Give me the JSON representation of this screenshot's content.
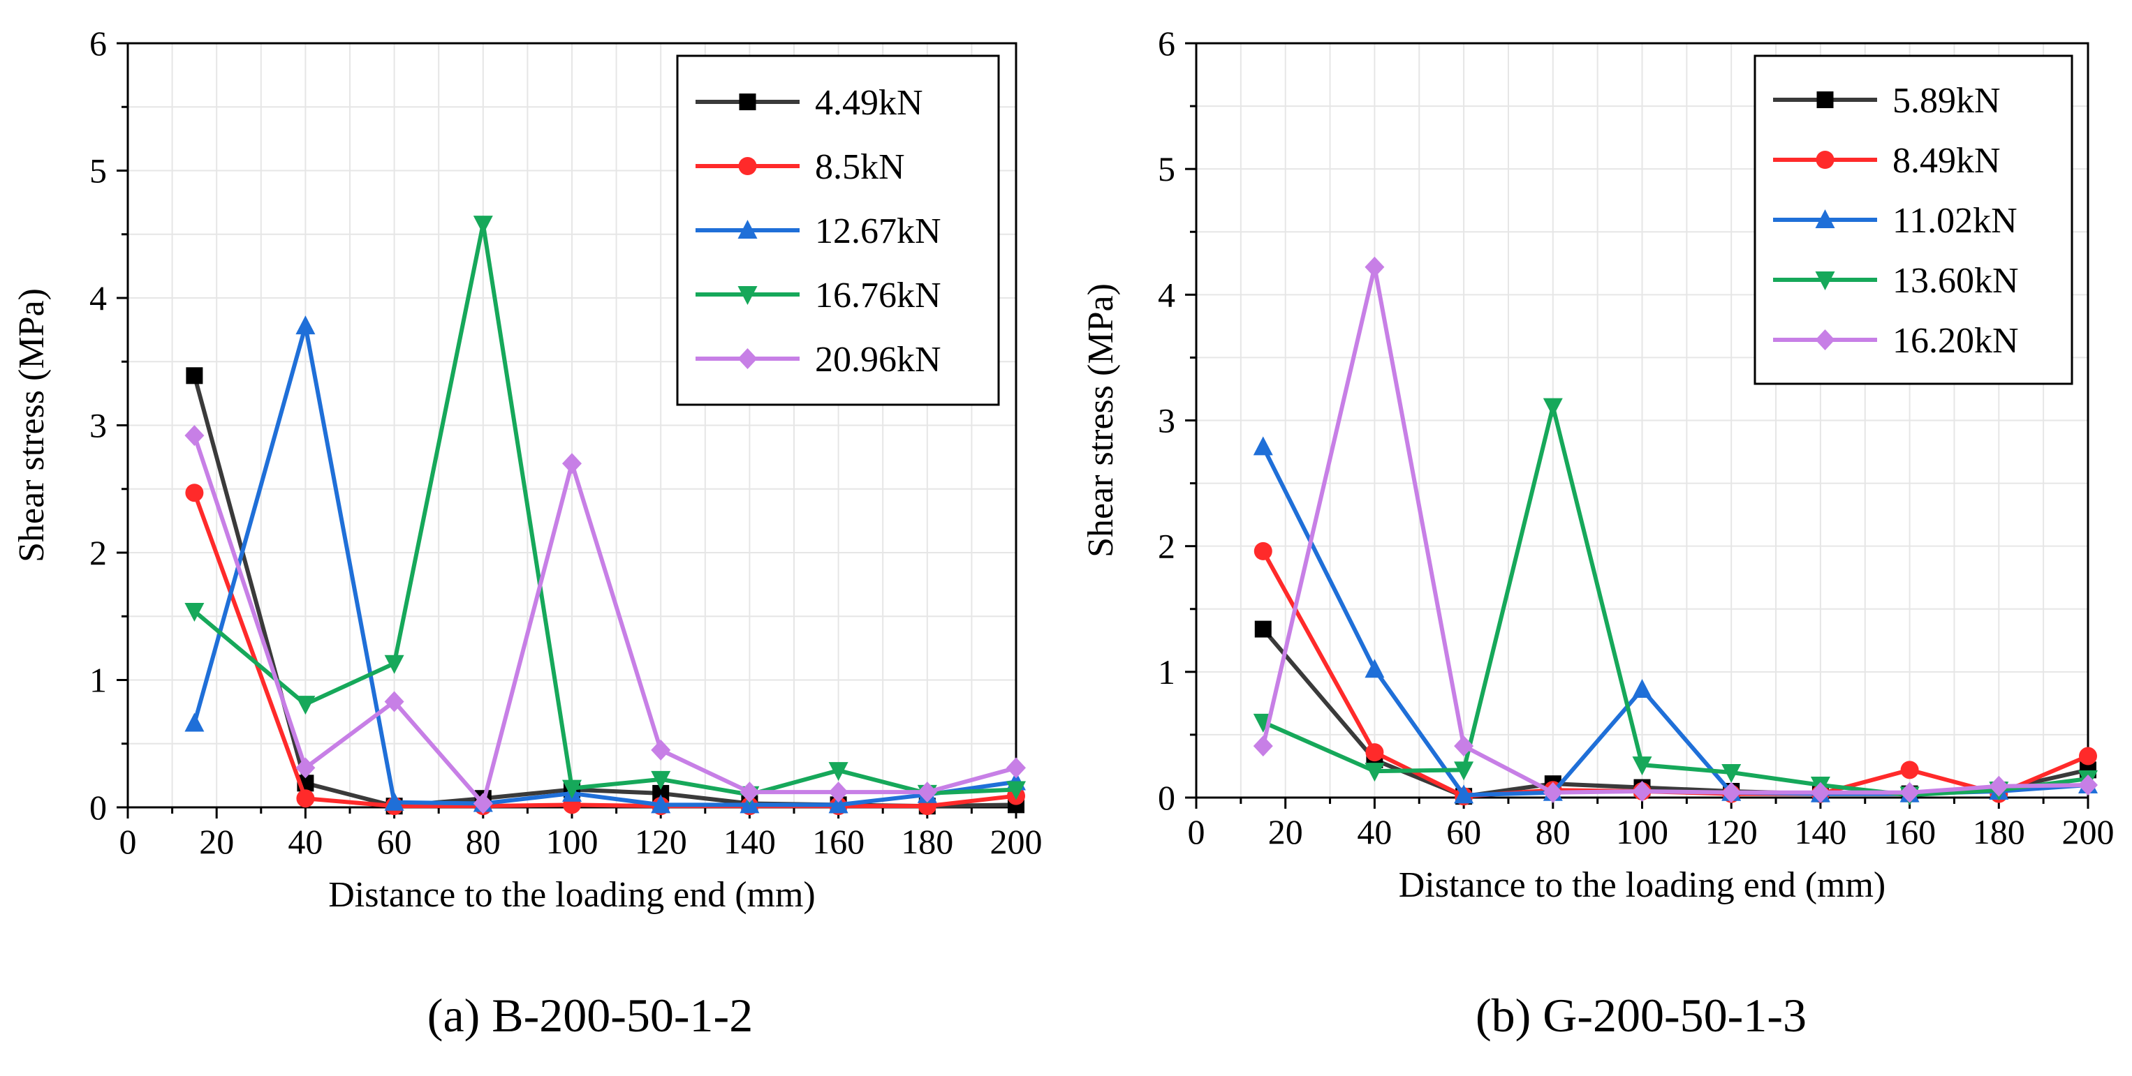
{
  "chart_data": [
    {
      "type": "line",
      "caption": "(a) B-200-50-1-2",
      "xlabel": "Distance to the loading end (mm)",
      "ylabel": "Shear stress (MPa)",
      "xlim": [
        0,
        200
      ],
      "ylim": [
        0,
        6
      ],
      "xticks": [
        "0",
        "20",
        "40",
        "60",
        "80",
        "100",
        "120",
        "140",
        "160",
        "180",
        "200"
      ],
      "yticks": [
        "0",
        "1",
        "2",
        "3",
        "4",
        "5",
        "6"
      ],
      "grid": true,
      "legend": "top-right",
      "x": [
        15,
        40,
        60,
        80,
        100,
        120,
        140,
        160,
        180,
        200
      ],
      "series": [
        {
          "name": "4.49kN",
          "color": "#3a3a3a",
          "marker": "square",
          "values": [
            3.39,
            0.19,
            0.01,
            0.07,
            0.14,
            0.11,
            0.03,
            0.02,
            0.01,
            0.02
          ]
        },
        {
          "name": "8.5kN",
          "color": "#ff2a2a",
          "marker": "circle",
          "values": [
            2.47,
            0.07,
            0.01,
            0.01,
            0.02,
            0.01,
            0.01,
            0.01,
            0.01,
            0.09
          ]
        },
        {
          "name": "12.67kN",
          "color": "#1f6fd8",
          "marker": "triangle-up",
          "values": [
            0.66,
            3.78,
            0.04,
            0.03,
            0.11,
            0.02,
            0.02,
            0.02,
            0.1,
            0.2
          ]
        },
        {
          "name": "16.76kN",
          "color": "#16a85a",
          "marker": "triangle-down",
          "values": [
            1.54,
            0.81,
            1.13,
            4.58,
            0.15,
            0.22,
            0.1,
            0.29,
            0.11,
            0.14
          ]
        },
        {
          "name": "20.96kN",
          "color": "#c77fe6",
          "marker": "diamond",
          "values": [
            2.92,
            0.31,
            0.83,
            0.03,
            2.7,
            0.45,
            0.12,
            0.12,
            0.12,
            0.31
          ]
        }
      ]
    },
    {
      "type": "line",
      "caption": "(b) G-200-50-1-3",
      "xlabel": "Distance to the loading end (mm)",
      "ylabel": "Shear stress (MPa)",
      "xlim": [
        0,
        200
      ],
      "ylim": [
        0,
        6
      ],
      "xticks": [
        "0",
        "20",
        "40",
        "60",
        "80",
        "100",
        "120",
        "140",
        "160",
        "180",
        "200"
      ],
      "yticks": [
        "0",
        "1",
        "2",
        "3",
        "4",
        "5",
        "6"
      ],
      "grid": true,
      "legend": "top-right",
      "x": [
        15,
        40,
        60,
        80,
        100,
        120,
        140,
        160,
        180,
        200
      ],
      "series": [
        {
          "name": "5.89kN",
          "color": "#3a3a3a",
          "marker": "square",
          "values": [
            1.34,
            0.3,
            0.01,
            0.11,
            0.08,
            0.05,
            0.03,
            0.03,
            0.06,
            0.22
          ]
        },
        {
          "name": "8.49kN",
          "color": "#ff2a2a",
          "marker": "circle",
          "values": [
            1.96,
            0.36,
            0.01,
            0.06,
            0.05,
            0.03,
            0.03,
            0.22,
            0.03,
            0.33
          ]
        },
        {
          "name": "11.02kN",
          "color": "#1f6fd8",
          "marker": "triangle-up",
          "values": [
            2.79,
            1.02,
            0.02,
            0.04,
            0.86,
            0.04,
            0.03,
            0.03,
            0.05,
            0.1
          ]
        },
        {
          "name": "13.60kN",
          "color": "#16a85a",
          "marker": "triangle-down",
          "values": [
            0.6,
            0.21,
            0.22,
            3.11,
            0.26,
            0.2,
            0.1,
            0.02,
            0.06,
            0.15
          ]
        },
        {
          "name": "16.20kN",
          "color": "#c77fe6",
          "marker": "diamond",
          "values": [
            0.41,
            4.22,
            0.41,
            0.04,
            0.05,
            0.04,
            0.04,
            0.04,
            0.09,
            0.1
          ]
        }
      ]
    }
  ]
}
